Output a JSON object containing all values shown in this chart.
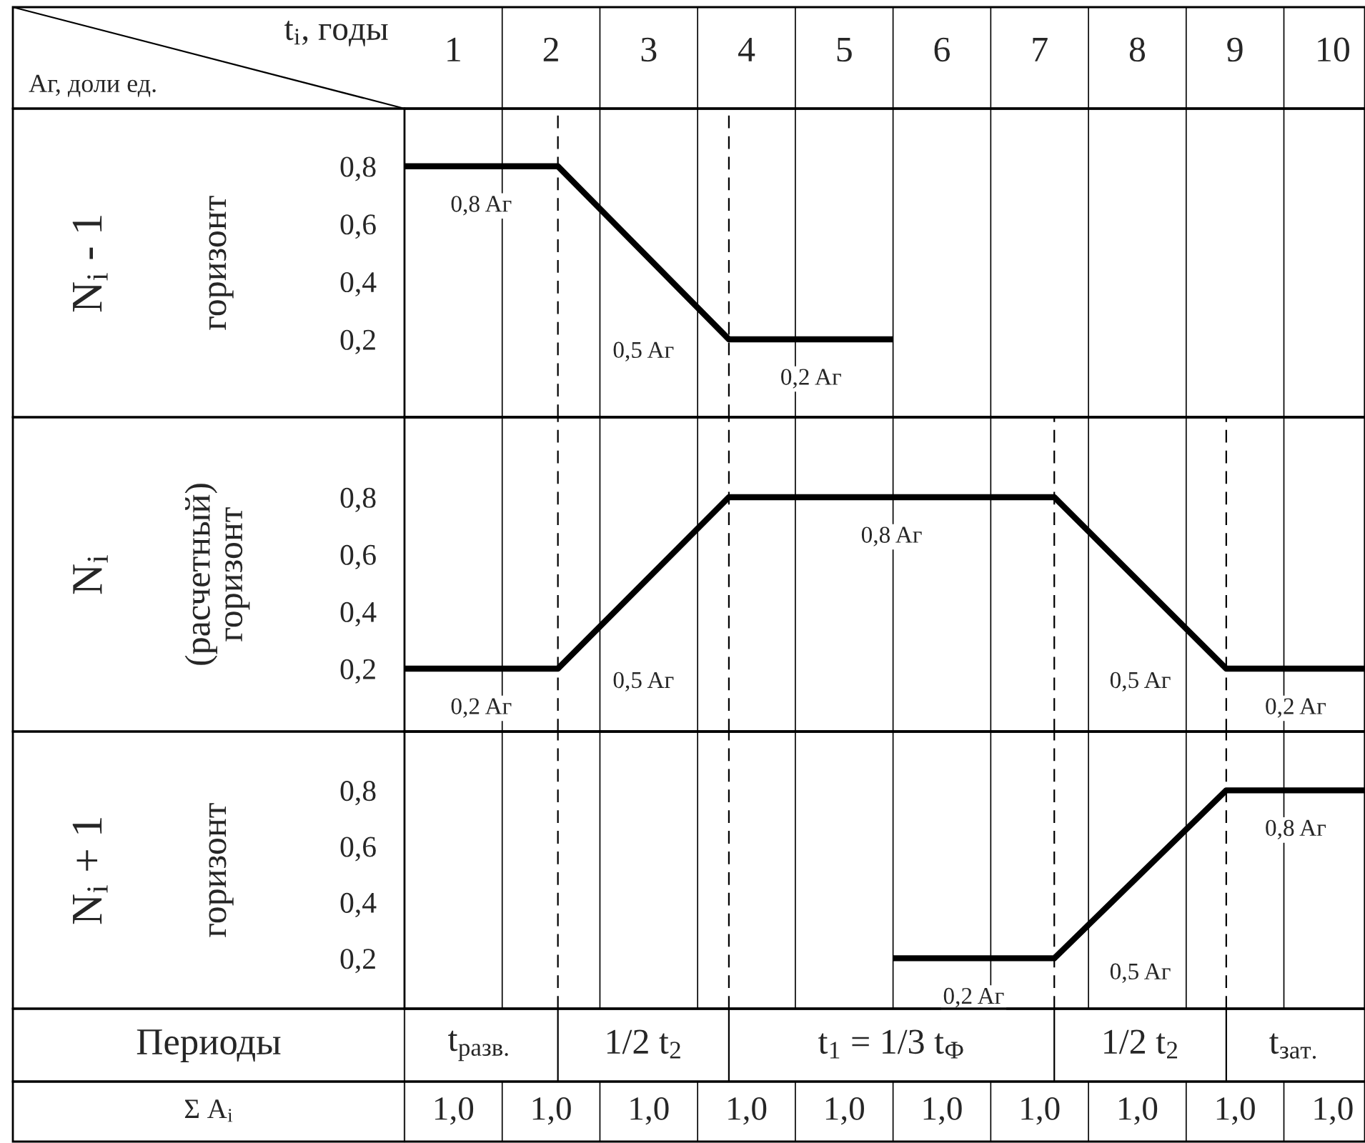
{
  "chart_data": [
    {
      "type": "line",
      "title": "N$_{i}$ - 1",
      "subtitle": "горизонт",
      "xlabel": "t$_{i}$, годы",
      "ylabel": "Aг, доли ед.",
      "series": [
        {
          "color": "#000000",
          "x": [
            0.5,
            2.07,
            3.82,
            5.5
          ],
          "values": [
            0.8,
            0.8,
            0.2,
            0.2
          ]
        }
      ],
      "xlim": [
        0.5,
        10.33
      ],
      "xticks": [
        1,
        2,
        3,
        4,
        5,
        6,
        7,
        8,
        9,
        10
      ],
      "ylim": [
        -0.07,
        1.0
      ],
      "yticks": [
        {
          "value": 0.2,
          "label": "0,2"
        },
        {
          "value": 0.4,
          "label": "0,4"
        },
        {
          "value": 0.6,
          "label": "0,6"
        },
        {
          "value": 0.8,
          "label": "0,8"
        }
      ],
      "ref_lines": [
        {
          "axis": "x",
          "value": 1.5,
          "line_style": "solid"
        },
        {
          "axis": "x",
          "value": 2.5,
          "line_style": "solid"
        },
        {
          "axis": "x",
          "value": 3.5,
          "line_style": "solid"
        },
        {
          "axis": "x",
          "value": 4.5,
          "line_style": "solid"
        },
        {
          "axis": "x",
          "value": 5.5,
          "line_style": "solid"
        },
        {
          "axis": "x",
          "value": 6.5,
          "line_style": "solid"
        },
        {
          "axis": "x",
          "value": 7.5,
          "line_style": "solid"
        },
        {
          "axis": "x",
          "value": 8.5,
          "line_style": "solid"
        },
        {
          "axis": "x",
          "value": 9.5,
          "line_style": "solid"
        },
        {
          "axis": "x",
          "value": 2.07,
          "line_style": "dashed"
        },
        {
          "axis": "x",
          "value": 3.82,
          "line_style": "dashed"
        }
      ],
      "annotations": [
        "0,8 Aг",
        "0,5 Aг",
        "0,2 Aг"
      ],
      "line_style": "solid"
    },
    {
      "type": "line",
      "title": "N$_{i}$",
      "subtitle": "(расчетный)\nгоризонт",
      "series": [
        {
          "color": "#000000",
          "x": [
            0.5,
            2.07,
            3.82,
            7.15,
            8.91,
            10.33
          ],
          "values": [
            0.2,
            0.2,
            0.8,
            0.8,
            0.2,
            0.2
          ]
        }
      ],
      "xlim": [
        0.5,
        10.33
      ],
      "xticks": [
        1,
        2,
        3,
        4,
        5,
        6,
        7,
        8,
        9,
        10
      ],
      "ylim": [
        -0.02,
        1.08
      ],
      "yticks": [
        {
          "value": 0.2,
          "label": "0,2"
        },
        {
          "value": 0.4,
          "label": "0,4"
        },
        {
          "value": 0.6,
          "label": "0,6"
        },
        {
          "value": 0.8,
          "label": "0,8"
        }
      ],
      "ref_lines": [
        {
          "axis": "x",
          "value": 1.5,
          "line_style": "solid"
        },
        {
          "axis": "x",
          "value": 2.5,
          "line_style": "solid"
        },
        {
          "axis": "x",
          "value": 3.5,
          "line_style": "solid"
        },
        {
          "axis": "x",
          "value": 4.5,
          "line_style": "solid"
        },
        {
          "axis": "x",
          "value": 5.5,
          "line_style": "solid"
        },
        {
          "axis": "x",
          "value": 6.5,
          "line_style": "solid"
        },
        {
          "axis": "x",
          "value": 7.5,
          "line_style": "solid"
        },
        {
          "axis": "x",
          "value": 8.5,
          "line_style": "solid"
        },
        {
          "axis": "x",
          "value": 9.5,
          "line_style": "solid"
        },
        {
          "axis": "x",
          "value": 2.07,
          "line_style": "dashed"
        },
        {
          "axis": "x",
          "value": 3.82,
          "line_style": "dashed"
        },
        {
          "axis": "x",
          "value": 7.15,
          "line_style": "dashed"
        },
        {
          "axis": "x",
          "value": 8.91,
          "line_style": "dashed"
        }
      ],
      "annotations": [
        "0,2 Aг",
        "0,5 Aг",
        "0,8 Aг",
        "0,5 Aг",
        "0,2 Aг"
      ],
      "tick_labels": "y",
      "line_style": "solid"
    },
    {
      "type": "line",
      "title": "N$_{i}$ + 1",
      "subtitle": "горизонт",
      "series": [
        {
          "color": "#000000",
          "x": [
            5.5,
            7.15,
            8.91,
            10.33
          ],
          "values": [
            0.2,
            0.2,
            0.8,
            0.8
          ]
        }
      ],
      "xlim": [
        0.5,
        10.33
      ],
      "xticks": [
        1,
        2,
        3,
        4,
        5,
        6,
        7,
        8,
        9,
        10
      ],
      "ylim": [
        0.02,
        1.01
      ],
      "yticks": [
        {
          "value": 0.2,
          "label": "0,2"
        },
        {
          "value": 0.4,
          "label": "0,4"
        },
        {
          "value": 0.6,
          "label": "0,6"
        },
        {
          "value": 0.8,
          "label": "0,8"
        }
      ],
      "ref_lines": [
        {
          "axis": "x",
          "value": 1.5,
          "line_style": "solid"
        },
        {
          "axis": "x",
          "value": 2.5,
          "line_style": "solid"
        },
        {
          "axis": "x",
          "value": 3.5,
          "line_style": "solid"
        },
        {
          "axis": "x",
          "value": 4.5,
          "line_style": "solid"
        },
        {
          "axis": "x",
          "value": 5.5,
          "line_style": "solid"
        },
        {
          "axis": "x",
          "value": 6.5,
          "line_style": "solid"
        },
        {
          "axis": "x",
          "value": 7.5,
          "line_style": "solid"
        },
        {
          "axis": "x",
          "value": 8.5,
          "line_style": "solid"
        },
        {
          "axis": "x",
          "value": 9.5,
          "line_style": "solid"
        },
        {
          "axis": "x",
          "value": 2.07,
          "line_style": "dashed"
        },
        {
          "axis": "x",
          "value": 3.82,
          "line_style": "dashed"
        },
        {
          "axis": "x",
          "value": 7.15,
          "line_style": "dashed"
        },
        {
          "axis": "x",
          "value": 8.91,
          "line_style": "dashed"
        }
      ],
      "annotations": [
        "0,2 Aг",
        "0,5 Aг",
        "0,8 Aг"
      ],
      "tick_labels": "y",
      "line_style": "solid"
    },
    {
      "type": "other",
      "title": "Периоды",
      "annotations": [
        "t$_{разв.}$",
        "1/2 t$_{2}$",
        "t$_{1}$ = 1/3 t$_{Ф}$",
        "1/2 t$_{2}$",
        "t$_{зат.}$"
      ]
    },
    {
      "type": "other",
      "title": "Σ A$_{i}$",
      "categories": [
        null,
        null,
        null,
        null,
        null,
        null,
        null,
        null,
        null,
        null
      ],
      "values": [
        1.0,
        1.0,
        1.0,
        1.0,
        1.0,
        1.0,
        1.0,
        1.0,
        1.0,
        1.0
      ],
      "value_labels": [
        "1,0",
        "1,0",
        "1,0",
        "1,0",
        "1,0",
        "1,0",
        "1,0",
        "1,0",
        "1,0",
        "1,0"
      ]
    }
  ]
}
